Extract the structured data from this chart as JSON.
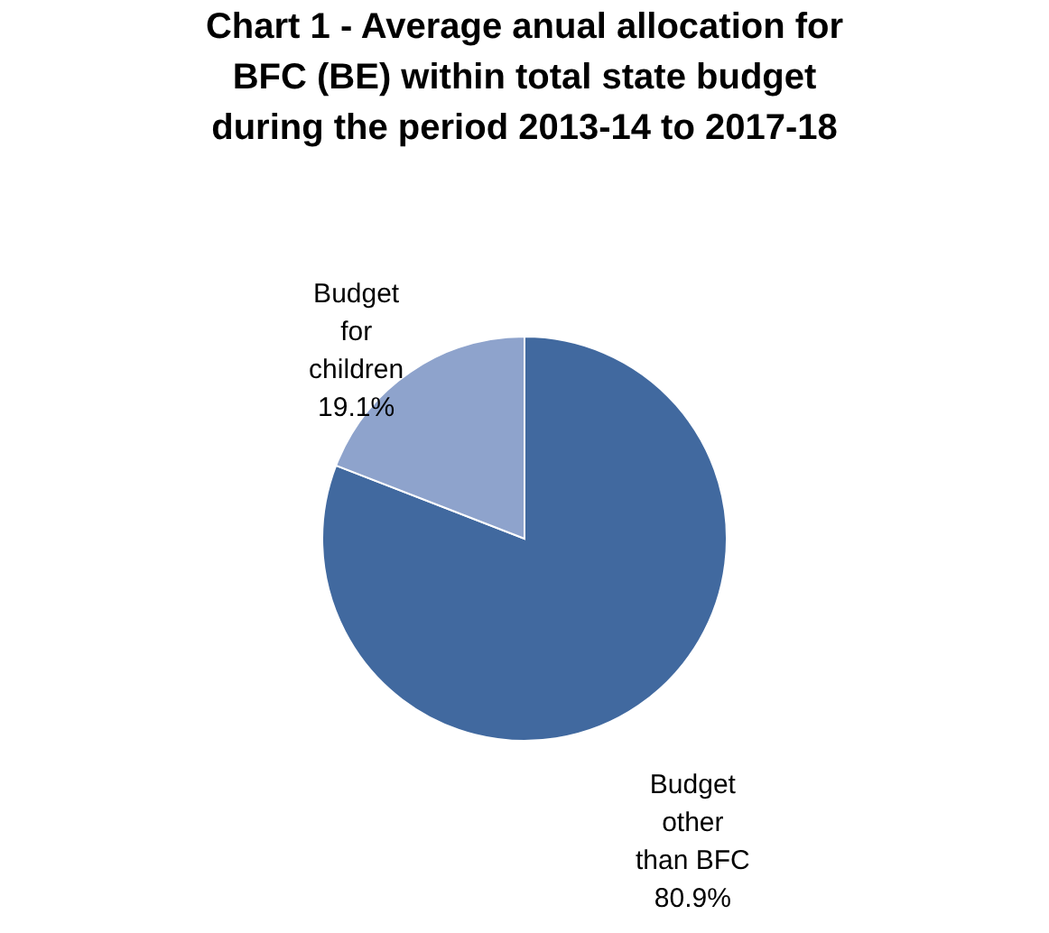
{
  "chart_data": {
    "type": "pie",
    "title": "Chart 1 - Average anual allocation for BFC (BE) within total state budget during the period 2013-14 to 2017-18",
    "categories": [
      "Budget other than BFC",
      "Budget for children"
    ],
    "values": [
      80.9,
      19.1
    ],
    "colors": [
      "#41699f",
      "#8ea3cc"
    ],
    "data_labels": true,
    "value_labels": [
      "80.9%",
      "19.1%"
    ],
    "legend": false
  }
}
